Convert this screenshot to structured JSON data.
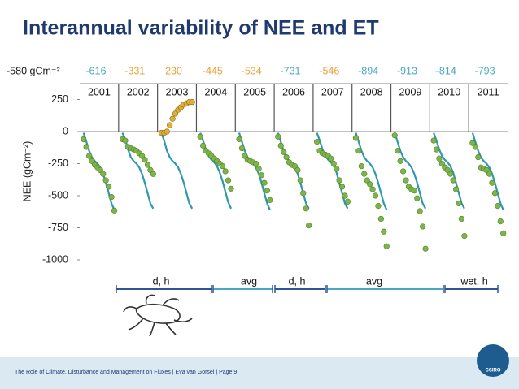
{
  "title": "Interannual variability of NEE and ET",
  "annual_totals": [
    {
      "text": "-580 gCm⁻²",
      "color": "#1a1a1a"
    },
    {
      "text": "-616",
      "color": "#4aa8c4"
    },
    {
      "text": "-331",
      "color": "#e8a33a"
    },
    {
      "text": "230",
      "color": "#e8a33a"
    },
    {
      "text": "-445",
      "color": "#e8a33a"
    },
    {
      "text": "-534",
      "color": "#e8a33a"
    },
    {
      "text": "-731",
      "color": "#4aa8c4"
    },
    {
      "text": "-546",
      "color": "#e8a33a"
    },
    {
      "text": "-894",
      "color": "#4aa8c4"
    },
    {
      "text": "-913",
      "color": "#4aa8c4"
    },
    {
      "text": "-814",
      "color": "#4aa8c4"
    },
    {
      "text": "-793",
      "color": "#4aa8c4"
    }
  ],
  "chart_data": {
    "type": "scatter",
    "ylabel": "NEE (gCm⁻²)",
    "ylim": [
      -1000,
      250
    ],
    "yticks": [
      250,
      0,
      -250,
      -500,
      -750,
      -1000
    ],
    "xlim": [
      0,
      365
    ],
    "x": [
      15,
      45,
      75,
      105,
      135,
      165,
      195,
      225,
      255,
      285,
      315,
      345
    ],
    "line_color": "#2f97b0",
    "panels": [
      {
        "year": "2001",
        "color": "#7ab648",
        "values": [
          -60,
          -120,
          -190,
          -230,
          -260,
          -280,
          -300,
          -330,
          -380,
          -430,
          -510,
          -616
        ],
        "line": [
          -10,
          -80,
          -150,
          -200,
          -230,
          -250,
          -280,
          -330,
          -400,
          -480,
          -560,
          -610
        ]
      },
      {
        "year": "2002",
        "color": "#7ab648",
        "values": [
          -60,
          -70,
          -120,
          -130,
          -140,
          -150,
          -170,
          -190,
          -220,
          -260,
          -300,
          -331
        ],
        "line": [
          -10,
          -60,
          -140,
          -200,
          -230,
          -250,
          -280,
          -330,
          -400,
          -480,
          -560,
          -600
        ]
      },
      {
        "year": "2003",
        "color": "#f0a830",
        "values": [
          -10,
          -10,
          0,
          50,
          100,
          140,
          170,
          190,
          210,
          220,
          230,
          230
        ],
        "line": [
          -10,
          -70,
          -150,
          -200,
          -230,
          -250,
          -280,
          -330,
          -400,
          -480,
          -560,
          -600
        ]
      },
      {
        "year": "2004",
        "color": "#7ab648",
        "values": [
          -40,
          -110,
          -150,
          -170,
          -190,
          -210,
          -230,
          -250,
          -270,
          -310,
          -380,
          -445
        ],
        "line": [
          -10,
          -70,
          -140,
          -190,
          -220,
          -240,
          -270,
          -320,
          -390,
          -470,
          -550,
          -600
        ]
      },
      {
        "year": "2005",
        "color": "#7ab648",
        "values": [
          -60,
          -130,
          -190,
          -220,
          -230,
          -240,
          -250,
          -290,
          -340,
          -400,
          -460,
          -534
        ],
        "line": [
          -10,
          -80,
          -150,
          -200,
          -230,
          -250,
          -280,
          -330,
          -400,
          -480,
          -560,
          -610
        ]
      },
      {
        "year": "2006",
        "color": "#7ab648",
        "values": [
          -40,
          -110,
          -160,
          -200,
          -240,
          -260,
          -270,
          -300,
          -380,
          -480,
          -600,
          -731
        ],
        "line": [
          -10,
          -80,
          -150,
          -200,
          -230,
          -250,
          -280,
          -330,
          -400,
          -480,
          -560,
          -600
        ]
      },
      {
        "year": "2007",
        "color": "#7ab648",
        "values": [
          -80,
          -150,
          -170,
          -180,
          -190,
          -210,
          -250,
          -290,
          -380,
          -430,
          -500,
          -546
        ],
        "line": [
          -10,
          -70,
          -140,
          -190,
          -220,
          -240,
          -270,
          -320,
          -400,
          -480,
          -560,
          -600
        ]
      },
      {
        "year": "2008",
        "color": "#7ab648",
        "values": [
          -50,
          -150,
          -270,
          -330,
          -380,
          -410,
          -450,
          -500,
          -580,
          -680,
          -780,
          -894
        ],
        "line": [
          -10,
          -80,
          -150,
          -200,
          -230,
          -250,
          -280,
          -330,
          -400,
          -480,
          -560,
          -610
        ]
      },
      {
        "year": "2009",
        "color": "#7ab648",
        "values": [
          -30,
          -150,
          -230,
          -310,
          -380,
          -430,
          -450,
          -460,
          -520,
          -620,
          -740,
          -913
        ],
        "line": [
          -10,
          -80,
          -150,
          -200,
          -230,
          -250,
          -280,
          -330,
          -400,
          -480,
          -560,
          -600
        ]
      },
      {
        "year": "2010",
        "color": "#7ab648",
        "values": [
          -70,
          -140,
          -210,
          -250,
          -280,
          -300,
          -330,
          -380,
          -450,
          -560,
          -680,
          -814
        ],
        "line": [
          -10,
          -70,
          -140,
          -190,
          -220,
          -240,
          -270,
          -320,
          -400,
          -480,
          -560,
          -600
        ]
      },
      {
        "year": "2011",
        "color": "#7ab648",
        "values": [
          -90,
          -120,
          -200,
          -280,
          -290,
          -300,
          -330,
          -400,
          -480,
          -580,
          -700,
          -793
        ],
        "line": [
          -10,
          -80,
          -150,
          -200,
          -230,
          -250,
          -280,
          -330,
          -400,
          -480,
          -560,
          -610
        ]
      }
    ]
  },
  "periods": [
    "d, h",
    "avg",
    "d, h",
    "avg",
    "wet, h"
  ],
  "footer": "The Role of Climate, Disturbance and Management on Fluxes  |  Eva van Gorsel  |  Page 9",
  "logo_text": "CSIRO"
}
